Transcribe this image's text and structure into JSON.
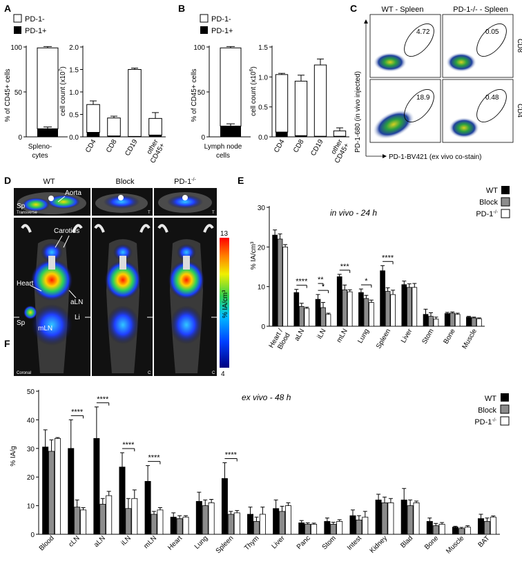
{
  "figure": {
    "panel_labels": [
      "A",
      "B",
      "C",
      "D",
      "E",
      "F"
    ]
  },
  "legend_pd": {
    "neg": "PD-1-",
    "pos": "PD-1+"
  },
  "legend_groups": {
    "wt": "WT",
    "block": "Block",
    "ko_base": "PD-1",
    "ko_sup": "-/-"
  },
  "colors": {
    "black": "#000000",
    "gray": "#8c8c8c",
    "white": "#ffffff"
  },
  "panelA": {
    "pct_chart": {
      "ylabel": "% of CD45+ cells",
      "yticks": [
        0,
        50,
        100
      ],
      "category_lines": [
        "Spleno-",
        "cytes"
      ],
      "pos": 9,
      "total": 99,
      "err_pos": 2,
      "err_total": 1.5
    },
    "count_chart": {
      "ylabel_main": "cell count (x10",
      "ylabel_sup": "7",
      "ylabel_end": ")",
      "yticks": [
        "0.0",
        "0.5",
        "1.0",
        "1.5",
        "2.0"
      ],
      "ymax": 2.0,
      "categories": [
        "CD4",
        "CD8",
        "CD19",
        "other CD45+"
      ],
      "total": [
        0.72,
        0.42,
        1.5,
        0.41
      ],
      "total_err": [
        0.08,
        0.04,
        0.03,
        0.13
      ],
      "pos": [
        0.1,
        0.02,
        0.01,
        0.04
      ],
      "pos_err": [
        0.02,
        0.01,
        0.005,
        0.01
      ]
    }
  },
  "panelB": {
    "pct_chart": {
      "ylabel": "% of CD45+ cells",
      "yticks": [
        0,
        50,
        100
      ],
      "category_lines": [
        "Lymph node",
        "cells"
      ],
      "pos": 12,
      "total": 99,
      "err_pos": 2.5,
      "err_total": 1.5
    },
    "count_chart": {
      "ylabel_main": "cell count (x10",
      "ylabel_sup": "6",
      "ylabel_end": ")",
      "yticks": [
        "0.0",
        "0.5",
        "1.0",
        "1.5"
      ],
      "ymax": 1.5,
      "categories": [
        "CD4",
        "CD8",
        "CD19",
        "other CD45+"
      ],
      "total": [
        1.04,
        0.93,
        1.2,
        0.1
      ],
      "total_err": [
        0.02,
        0.1,
        0.1,
        0.05
      ],
      "pos": [
        0.08,
        0.02,
        0.01,
        0.01
      ],
      "pos_err": [
        0.02,
        0.005,
        0.005,
        0.005
      ]
    }
  },
  "panelC": {
    "col_titles": [
      "WT - Spleen",
      "PD-1-/- - Spleen"
    ],
    "row_labels": [
      "CD8",
      "CD4"
    ],
    "gate_values": [
      "4.72",
      "0.05",
      "18.9",
      "0.48"
    ],
    "ylabel": "PD-1-680 (in vivo injected)",
    "xlabel": "PD-1-BV421 (ex vivo co-stain)"
  },
  "panelD": {
    "col_titles": [
      "WT",
      "Block",
      "PD-1"
    ],
    "col_title_sup": "-/-",
    "labels": {
      "aorta": "Aorta",
      "sp": "Sp",
      "carotids": "Carotids",
      "heart": "Heart",
      "aln": "aLN",
      "li": "Li",
      "mln": "mLN"
    },
    "view_labels": {
      "transverse": "Transverse",
      "t": "T",
      "coronal": "Coronal",
      "c": "C"
    },
    "scale": {
      "max": "13",
      "min": "4",
      "unit": "% IA/cm³"
    }
  },
  "chart_data": [
    {
      "type": "bar",
      "title": "in vivo - 24 h",
      "ylabel": "% IA/cm³",
      "ylim": [
        0,
        30
      ],
      "yticks": [
        0,
        10,
        20,
        30
      ],
      "categories": [
        "Heart / Blood",
        "aLN",
        "iLN",
        "mLN",
        "Lung",
        "Spleen",
        "Liver",
        "Stom",
        "Bone",
        "Muscle"
      ],
      "series": [
        {
          "name": "WT",
          "values": [
            23,
            8.5,
            6.8,
            12.5,
            8.5,
            14,
            10.5,
            3,
            3.2,
            2.3
          ],
          "errors": [
            1.3,
            0.8,
            1.2,
            0.6,
            0.9,
            1.3,
            0.9,
            1.3,
            0.3,
            0.2
          ]
        },
        {
          "name": "Block",
          "values": [
            22,
            5,
            4.7,
            9.2,
            7,
            8.8,
            9.8,
            2.5,
            3.3,
            2.1
          ],
          "errors": [
            1.3,
            0.8,
            1.3,
            1.2,
            0.8,
            0.9,
            0.9,
            0.9,
            0.3,
            0.2
          ]
        },
        {
          "name": "PD-1-/-",
          "values": [
            20,
            4.5,
            3,
            8.7,
            6,
            8,
            9.8,
            1.8,
            3,
            1.9
          ],
          "errors": [
            0.6,
            0.3,
            0.3,
            0.5,
            0.6,
            1.1,
            1.0,
            0.5,
            0.3,
            0.2
          ]
        }
      ],
      "significance": [
        {
          "category": "aLN",
          "label": "****"
        },
        {
          "category": "iLN",
          "label": "*"
        },
        {
          "category": "iLN",
          "label": "**"
        },
        {
          "category": "mLN",
          "label": "***"
        },
        {
          "category": "Lung",
          "label": "*"
        },
        {
          "category": "Spleen",
          "label": "****"
        }
      ],
      "legend": "top-right"
    },
    {
      "type": "bar",
      "title": "ex vivo - 48 h",
      "ylabel": "% IA/g",
      "ylim": [
        0,
        50
      ],
      "yticks": [
        0,
        10,
        20,
        30,
        40,
        50
      ],
      "categories": [
        "Blood",
        "cLN",
        "aLN",
        "iLN",
        "mLN",
        "Heart",
        "Lung",
        "Spleen",
        "Thym",
        "Liver",
        "Panc",
        "Stom",
        "Intest",
        "Kidney",
        "Blad",
        "Bone",
        "Muscle",
        "BAT"
      ],
      "series": [
        {
          "name": "WT",
          "values": [
            30.5,
            30,
            33.5,
            23.5,
            18.5,
            6,
            11.5,
            19.5,
            7,
            9,
            4,
            4.5,
            6.5,
            12,
            12,
            4.5,
            2.5,
            5.5
          ],
          "errors": [
            6,
            10,
            11,
            5,
            5.5,
            1.5,
            3.2,
            5.5,
            2.5,
            3,
            0.8,
            1.2,
            2,
            2,
            4,
            1.2,
            0.3,
            1.5
          ]
        },
        {
          "name": "Block",
          "values": [
            29,
            9.5,
            10.5,
            9,
            7,
            5.5,
            10,
            7,
            4.5,
            8,
            3.5,
            3.5,
            5,
            11,
            10,
            3,
            2,
            4.5
          ],
          "errors": [
            4,
            2.5,
            2,
            3.5,
            1,
            1,
            2,
            1,
            1.5,
            1.8,
            0.5,
            0.7,
            1.5,
            2,
            2,
            0.8,
            0.4,
            1.2
          ]
        },
        {
          "name": "PD-1-/-",
          "values": [
            33.5,
            8.5,
            13.5,
            12.5,
            8.5,
            6,
            11,
            7.5,
            7,
            10,
            3.5,
            4.5,
            6,
            11,
            11,
            3.5,
            2.5,
            6
          ],
          "errors": [
            0.3,
            0.8,
            1.5,
            3,
            0.8,
            0.5,
            1.2,
            0.8,
            2.5,
            1,
            0.4,
            0.6,
            2,
            1.5,
            0.6,
            0.6,
            0.5,
            0.4
          ]
        }
      ],
      "significance": [
        {
          "category": "cLN",
          "label": "****"
        },
        {
          "category": "aLN",
          "label": "****"
        },
        {
          "category": "iLN",
          "label": "****"
        },
        {
          "category": "mLN",
          "label": "****"
        },
        {
          "category": "Spleen",
          "label": "****"
        }
      ],
      "legend": "top-right"
    }
  ]
}
